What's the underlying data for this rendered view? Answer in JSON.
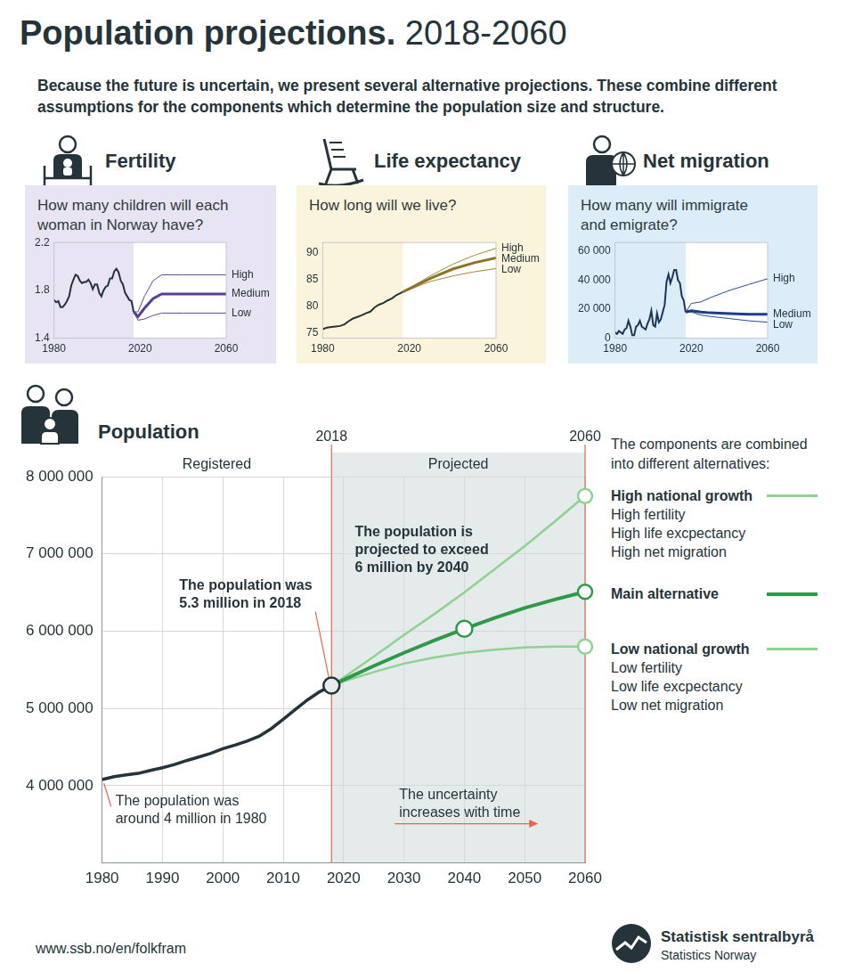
{
  "header": {
    "title": "Population projections.",
    "title_years": "2018-2060",
    "subtitle": "Because the future is uncertain, we present several alternative projections. These combine different assumptions for the components which determine the population size and structure."
  },
  "chart_data": [
    {
      "type": "line",
      "title": "Fertility",
      "subtitle": "How many children will each woman in Norway have?",
      "xlim": [
        1980,
        2060
      ],
      "xticks": [
        1980,
        2020,
        2060
      ],
      "ylim": [
        1.4,
        2.2
      ],
      "yticks": [
        1.4,
        1.8,
        2.2
      ],
      "grid": false,
      "series": [
        {
          "color": "#24343a",
          "x": [
            1980,
            1981,
            1982,
            1983,
            1984,
            1985,
            1986,
            1987,
            1988,
            1989,
            1990,
            1991,
            1992,
            1993,
            1994,
            1995,
            1996,
            1997,
            1998,
            1999,
            2000,
            2001,
            2002,
            2003,
            2004,
            2005,
            2006,
            2007,
            2008,
            2009,
            2010,
            2011,
            2012,
            2013,
            2014,
            2015,
            2016,
            2017
          ],
          "values": [
            1.72,
            1.7,
            1.71,
            1.66,
            1.66,
            1.68,
            1.71,
            1.75,
            1.84,
            1.89,
            1.93,
            1.92,
            1.88,
            1.86,
            1.87,
            1.87,
            1.89,
            1.86,
            1.81,
            1.85,
            1.85,
            1.78,
            1.75,
            1.8,
            1.83,
            1.84,
            1.9,
            1.9,
            1.96,
            1.98,
            1.95,
            1.88,
            1.85,
            1.78,
            1.75,
            1.72,
            1.71,
            1.62
          ]
        },
        {
          "name": "High",
          "color": "#5b4a9a",
          "x": [
            2017,
            2019,
            2022,
            2026,
            2030,
            2040,
            2060
          ],
          "values": [
            1.62,
            1.62,
            1.75,
            1.88,
            1.93,
            1.93,
            1.93
          ]
        },
        {
          "name": "Medium",
          "color": "#5b3f94",
          "x": [
            2017,
            2019,
            2022,
            2026,
            2030,
            2040,
            2060
          ],
          "values": [
            1.62,
            1.58,
            1.65,
            1.73,
            1.77,
            1.77,
            1.77
          ]
        },
        {
          "name": "Low",
          "color": "#5b4a9a",
          "x": [
            2017,
            2019,
            2022,
            2026,
            2030,
            2040,
            2060
          ],
          "values": [
            1.62,
            1.55,
            1.56,
            1.59,
            1.61,
            1.61,
            1.61
          ]
        }
      ]
    },
    {
      "type": "line",
      "title": "Life expectancy",
      "subtitle": "How long will we live?",
      "xlim": [
        1980,
        2060
      ],
      "xticks": [
        1980,
        2020,
        2060
      ],
      "ylim": [
        74,
        92
      ],
      "yticks": [
        75,
        80,
        85,
        90
      ],
      "grid": false,
      "series": [
        {
          "color": "#24343a",
          "x": [
            1980,
            1982,
            1984,
            1986,
            1988,
            1990,
            1992,
            1994,
            1996,
            1998,
            2000,
            2002,
            2004,
            2006,
            2008,
            2010,
            2012,
            2014,
            2016,
            2017
          ],
          "values": [
            75.7,
            76.0,
            76.1,
            76.2,
            76.3,
            76.6,
            77.2,
            77.7,
            78.0,
            78.3,
            78.7,
            79.0,
            79.8,
            80.3,
            80.6,
            81.1,
            81.5,
            82.1,
            82.5,
            82.7
          ]
        },
        {
          "name": "High",
          "color": "#a08a3c",
          "x": [
            2017,
            2030,
            2040,
            2050,
            2060
          ],
          "values": [
            82.7,
            85.8,
            87.9,
            89.6,
            90.9
          ]
        },
        {
          "name": "Medium",
          "color": "#8c7426",
          "x": [
            2017,
            2030,
            2040,
            2050,
            2060
          ],
          "values": [
            82.7,
            85.3,
            87.0,
            88.2,
            89.1
          ]
        },
        {
          "name": "Low",
          "color": "#a08a3c",
          "x": [
            2017,
            2030,
            2040,
            2050,
            2060
          ],
          "values": [
            82.7,
            84.7,
            85.7,
            86.5,
            87.1
          ]
        }
      ]
    },
    {
      "type": "line",
      "title": "Net migration",
      "subtitle": "How many will immigrate and emigrate?",
      "xlim": [
        1980,
        2060
      ],
      "xticks": [
        1980,
        2020,
        2060
      ],
      "ylim": [
        0,
        66000
      ],
      "yticks": [
        0,
        {
          "value": 20000,
          "label": "20 000"
        },
        {
          "value": 40000,
          "label": "40 000"
        },
        {
          "value": 60000,
          "label": "60 000"
        }
      ],
      "grid": false,
      "series": [
        {
          "color": "#1d3557",
          "x": [
            1980,
            1981,
            1982,
            1983,
            1984,
            1985,
            1986,
            1987,
            1988,
            1989,
            1990,
            1991,
            1992,
            1993,
            1994,
            1995,
            1996,
            1997,
            1998,
            1999,
            2000,
            2001,
            2002,
            2003,
            2004,
            2005,
            2006,
            2007,
            2008,
            2009,
            2010,
            2011,
            2012,
            2013,
            2014,
            2015,
            2016,
            2017
          ],
          "values": [
            4000,
            3000,
            5000,
            4000,
            3000,
            6000,
            7000,
            12000,
            8000,
            2000,
            2000,
            8000,
            9000,
            12000,
            8000,
            7000,
            6000,
            10000,
            13000,
            19000,
            9000,
            8000,
            17000,
            11000,
            13000,
            18000,
            23000,
            39000,
            44000,
            38000,
            42000,
            47000,
            47000,
            40000,
            38000,
            29000,
            26000,
            18000
          ]
        },
        {
          "name": "High",
          "color": "#2a4a8f",
          "x": [
            2017,
            2020,
            2025,
            2030,
            2040,
            2050,
            2060
          ],
          "values": [
            18000,
            24000,
            25000,
            28000,
            33000,
            37000,
            41000
          ]
        },
        {
          "name": "Medium",
          "color": "#1f3a8a",
          "x": [
            2017,
            2020,
            2025,
            2030,
            2040,
            2050,
            2060
          ],
          "values": [
            18000,
            19000,
            18000,
            17500,
            17000,
            16500,
            16500
          ]
        },
        {
          "name": "Low",
          "color": "#2a4a8f",
          "x": [
            2017,
            2020,
            2025,
            2030,
            2040,
            2050,
            2060
          ],
          "values": [
            18000,
            18000,
            16000,
            15000,
            13500,
            12000,
            11000
          ]
        }
      ]
    },
    {
      "type": "line",
      "title": "Population",
      "xlim": [
        1980,
        2060
      ],
      "xticks": [
        1980,
        1990,
        2000,
        2010,
        2020,
        2030,
        2040,
        2050,
        2060
      ],
      "ylim": [
        3000000,
        8000000
      ],
      "yticks": [
        {
          "value": 4000000,
          "label": "4 000 000"
        },
        {
          "value": 5000000,
          "label": "5 000 000"
        },
        {
          "value": 6000000,
          "label": "6 000 000"
        },
        {
          "value": 7000000,
          "label": "7 000 000"
        },
        {
          "value": 8000000,
          "label": "8 000 000"
        }
      ],
      "grid": true,
      "legend": "right",
      "legend_title": "The components are combined into different alternatives:",
      "vlines": [
        2018,
        2060
      ],
      "sections": [
        {
          "label": "Registered",
          "from": 1980,
          "to": 2018
        },
        {
          "label": "Projected",
          "from": 2018,
          "to": 2060
        }
      ],
      "series": [
        {
          "color": "#24343a",
          "x": [
            1980,
            1982,
            1984,
            1986,
            1988,
            1990,
            1992,
            1994,
            1996,
            1998,
            2000,
            2002,
            2004,
            2006,
            2008,
            2010,
            2012,
            2014,
            2016,
            2018
          ],
          "values": [
            4079000,
            4116000,
            4141000,
            4159000,
            4198000,
            4233000,
            4274000,
            4325000,
            4370000,
            4418000,
            4478000,
            4524000,
            4577000,
            4640000,
            4737000,
            4858000,
            4986000,
            5109000,
            5214000,
            5295000
          ]
        },
        {
          "name": "High national growth",
          "color": "#8fd18f",
          "marker": "circle",
          "components": [
            "High fertility",
            "High life excpectancy",
            "High net migration"
          ],
          "x": [
            2018,
            2020,
            2025,
            2030,
            2035,
            2040,
            2045,
            2050,
            2055,
            2060
          ],
          "values": [
            5295000,
            5400000,
            5670000,
            5950000,
            6220000,
            6500000,
            6800000,
            7100000,
            7420000,
            7750000
          ]
        },
        {
          "name": "Main alternative",
          "color": "#2e9a48",
          "marker": "circle",
          "x": [
            2018,
            2020,
            2025,
            2030,
            2035,
            2040,
            2045,
            2050,
            2055,
            2060
          ],
          "values": [
            5295000,
            5370000,
            5550000,
            5720000,
            5880000,
            6030000,
            6170000,
            6300000,
            6410000,
            6510000
          ]
        },
        {
          "name": "Low national growth",
          "color": "#8fd18f",
          "marker": "circle",
          "components": [
            "Low fertility",
            "Low life excpectancy",
            "Low net migration"
          ],
          "x": [
            2018,
            2020,
            2025,
            2030,
            2035,
            2040,
            2045,
            2050,
            2055,
            2060
          ],
          "values": [
            5295000,
            5350000,
            5470000,
            5580000,
            5660000,
            5720000,
            5760000,
            5790000,
            5800000,
            5800000
          ]
        }
      ],
      "annotations": [
        {
          "text": [
            "The population was",
            "5.3 million in 2018"
          ],
          "x": 2018,
          "y": 5295000
        },
        {
          "text": [
            "The population is",
            "projected to exceed",
            "6 million by 2040"
          ],
          "x": 2040,
          "y": 6030000
        },
        {
          "text": [
            "The population was",
            "around 4 million in 1980"
          ],
          "x": 1980,
          "y": 4079000
        },
        {
          "text": [
            "The uncertainty",
            "increases with time"
          ]
        }
      ]
    }
  ],
  "footer": {
    "url": "www.ssb.no/en/folkfram",
    "org": "Statistisk sentralbyrå",
    "org_en": "Statistics Norway"
  }
}
